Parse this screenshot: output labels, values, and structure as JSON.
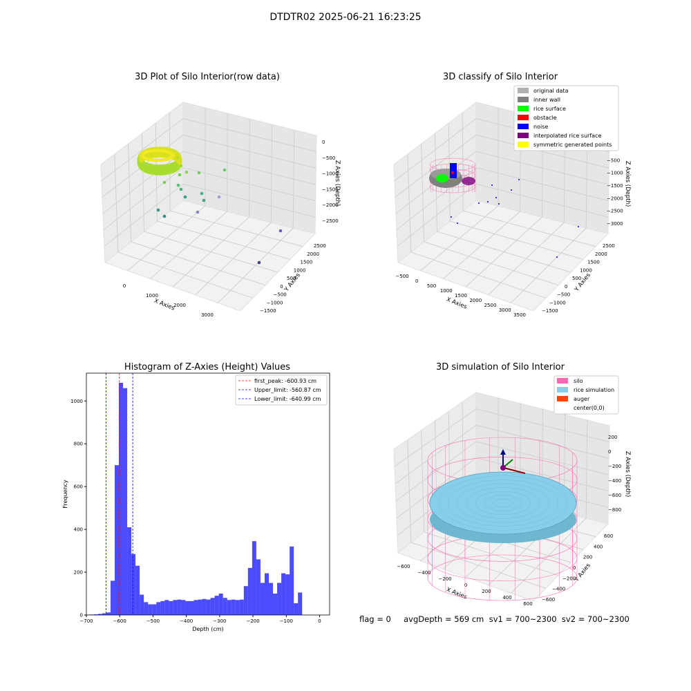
{
  "figure": {
    "suptitle": "DTDTR02 2025-06-21 16:23:25",
    "footer": "flag = 0     avgDepth = 569 cm  sv1 = 700~2300  sv2 = 700~2300"
  },
  "panels": {
    "raw": {
      "title": "3D Plot of Silo Interior(row data)",
      "xlabel": "X Axies",
      "ylabel": "Y Axies",
      "zlabel": "Z Axies (Depth)",
      "xticks": [
        "0",
        "1000",
        "2000",
        "3000"
      ],
      "yticks": [
        "−1500",
        "−1000",
        "−500",
        "0",
        "500",
        "1000",
        "1500",
        "2000",
        "2500"
      ],
      "zticks": [
        "0",
        "−500",
        "−1000",
        "−1500",
        "−2000",
        "−2500"
      ]
    },
    "classify": {
      "title": "3D classify of Silo Interior",
      "xlabel": "X Axies",
      "ylabel": "Y Axies",
      "zlabel": "Z Axies (Depth)",
      "xticks": [
        "−500",
        "0",
        "500",
        "1000",
        "1500",
        "2000",
        "2500",
        "3000",
        "3500"
      ],
      "yticks": [
        "−1500",
        "−1000",
        "−500",
        "0",
        "500",
        "1000",
        "1500",
        "2000",
        "2500"
      ],
      "zticks": [
        "0",
        "−500",
        "−1000",
        "−1500",
        "−2000",
        "−2500",
        "−3000"
      ],
      "legend": [
        {
          "label": "original data",
          "color": "#b0b0b0"
        },
        {
          "label": "inner wall",
          "color": "#808080"
        },
        {
          "label": "rice surface",
          "color": "#00ff00"
        },
        {
          "label": "obstacle",
          "color": "#ff0000"
        },
        {
          "label": "noise",
          "color": "#0000ff"
        },
        {
          "label": "interpolated rice surface",
          "color": "#800080"
        },
        {
          "label": "symmetric generated points",
          "color": "#ffff00"
        }
      ]
    },
    "simulation": {
      "title": "3D simulation of Silo Interior",
      "xlabel": "X Axies",
      "ylabel": "Y Axies",
      "zlabel": "Z Axies (Depth)",
      "xticks": [
        "−600",
        "−400",
        "−200",
        "0",
        "200",
        "400",
        "600"
      ],
      "yticks": [
        "−600",
        "−400",
        "−200",
        "0",
        "200",
        "400",
        "600"
      ],
      "zticks": [
        "200",
        "0",
        "−200",
        "−400",
        "−600",
        "−800"
      ],
      "legend": [
        {
          "label": "silo",
          "color": "#ff69b4"
        },
        {
          "label": "rice simulation",
          "color": "#87ceeb"
        },
        {
          "label": "auger",
          "color": "#ff4500"
        },
        {
          "label": "center(0,0)",
          "color": "#ffffff"
        }
      ]
    }
  },
  "chart_data": {
    "type": "bar",
    "title": "Histogram of Z-Axies (Height) Values",
    "xlabel": "Depth (cm)",
    "ylabel": "Frequency",
    "xlim": [
      -700,
      30
    ],
    "ylim": [
      0,
      1130
    ],
    "xticks": [
      -700,
      -600,
      -500,
      -400,
      -300,
      -200,
      -100,
      0
    ],
    "yticks": [
      0,
      200,
      400,
      600,
      800,
      1000
    ],
    "bin_width": 12.5,
    "bin_start": -690,
    "bar_color": "#0000ff",
    "values": [
      2,
      3,
      5,
      8,
      12,
      160,
      700,
      1085,
      1060,
      410,
      285,
      230,
      95,
      60,
      50,
      50,
      60,
      65,
      70,
      65,
      70,
      72,
      70,
      65,
      65,
      70,
      72,
      75,
      72,
      80,
      90,
      100,
      80,
      70,
      72,
      70,
      72,
      135,
      220,
      345,
      260,
      150,
      195,
      150,
      100,
      150,
      195,
      190,
      320,
      55,
      105
    ],
    "lines": [
      {
        "label": "first_peak: -600.93 cm",
        "x": -600.93,
        "color": "#ff0000"
      },
      {
        "label": "Upper_limit: -560.87 cm",
        "x": -560.87,
        "color": "#0000ff"
      },
      {
        "label": "Lower_limit: -640.99 cm",
        "x": -640.99,
        "color": "#0000ff"
      }
    ]
  }
}
